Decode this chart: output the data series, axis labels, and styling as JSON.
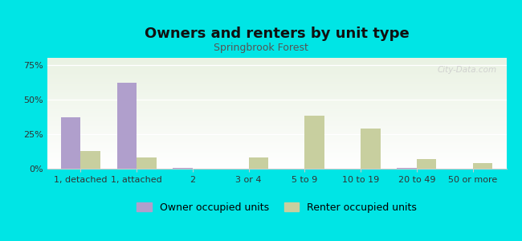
{
  "title": "Owners and renters by unit type",
  "subtitle": "Springbrook Forest",
  "categories": [
    "1, detached",
    "1, attached",
    "2",
    "3 or 4",
    "5 to 9",
    "10 to 19",
    "20 to 49",
    "50 or more"
  ],
  "owner_values": [
    37,
    62,
    0.5,
    0,
    0,
    0,
    0.5,
    0
  ],
  "renter_values": [
    13,
    8,
    0,
    8,
    38,
    29,
    7,
    4
  ],
  "owner_color": "#b09fcc",
  "renter_color": "#c8cf9f",
  "background_color": "#00e5e5",
  "plot_bg_top": "#eaf2e3",
  "plot_bg_bottom": "#ffffff",
  "ylim": [
    0,
    80
  ],
  "yticks": [
    0,
    25,
    50,
    75
  ],
  "ytick_labels": [
    "0%",
    "25%",
    "50%",
    "75%"
  ],
  "bar_width": 0.35,
  "legend_owner": "Owner occupied units",
  "legend_renter": "Renter occupied units",
  "title_fontsize": 13,
  "subtitle_fontsize": 9,
  "tick_fontsize": 8,
  "legend_fontsize": 9,
  "watermark": "City-Data.com"
}
